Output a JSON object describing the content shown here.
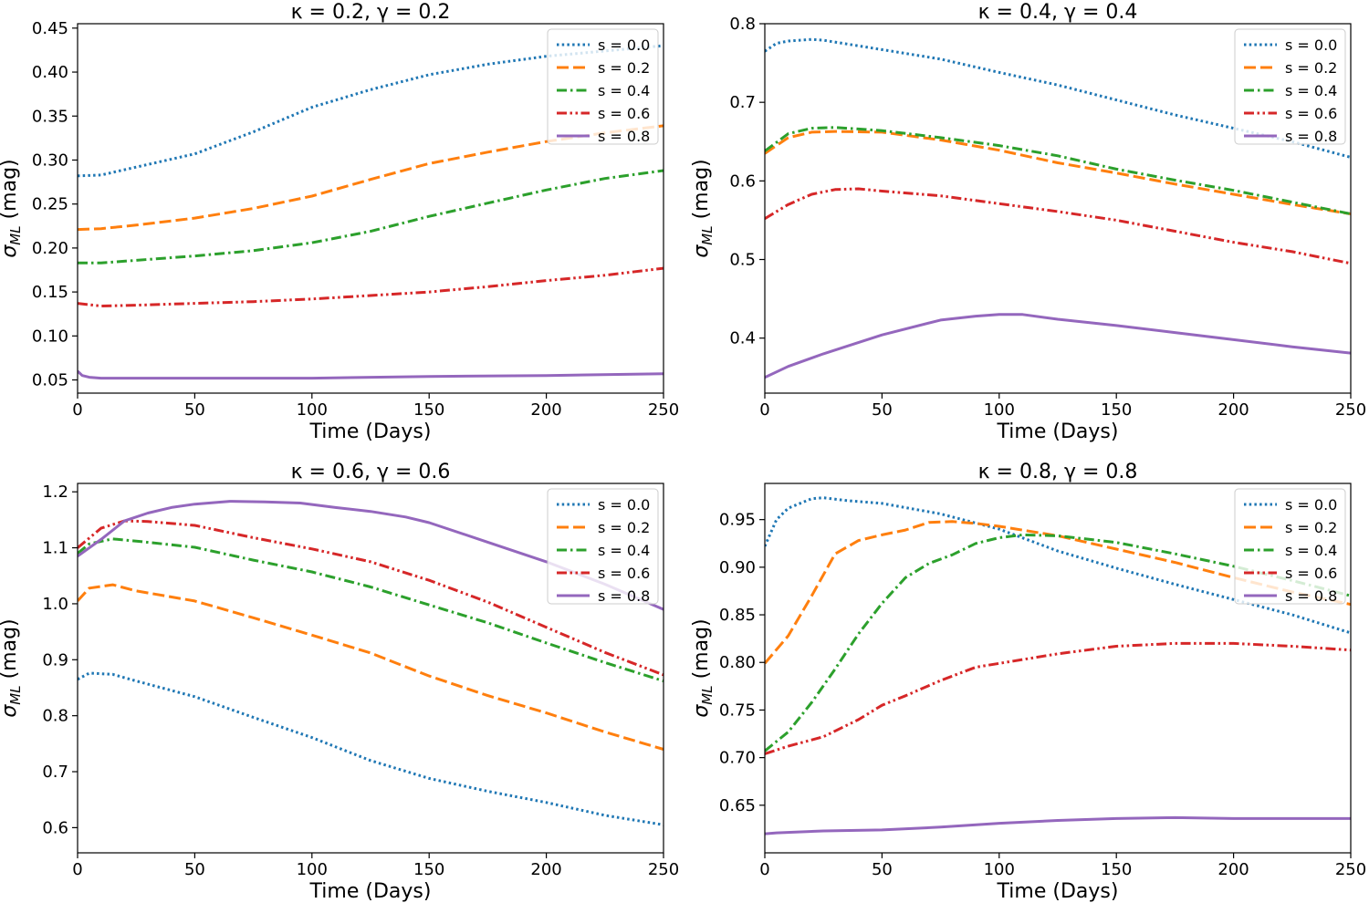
{
  "chart_data": [
    {
      "type": "line",
      "title": "κ = 0.2, γ = 0.2",
      "xlabel": "Time (Days)",
      "ylabel": "σML (mag)",
      "xlim": [
        0,
        250
      ],
      "ylim": [
        0.035,
        0.455
      ],
      "xticks": [
        0,
        50,
        100,
        150,
        200,
        250
      ],
      "xtick_labels": [
        "0",
        "50",
        "100",
        "150",
        "200",
        "250"
      ],
      "yticks": [
        0.05,
        0.1,
        0.15,
        0.2,
        0.25,
        0.3,
        0.35,
        0.4,
        0.45
      ],
      "ytick_labels": [
        "0.05",
        "0.10",
        "0.15",
        "0.20",
        "0.25",
        "0.30",
        "0.35",
        "0.40",
        "0.45"
      ],
      "legend_position": "top-right",
      "series": [
        {
          "name": "s = 0.0",
          "color": "#1f77b4",
          "style": "dotted",
          "x": [
            0,
            10,
            25,
            50,
            75,
            100,
            125,
            150,
            175,
            200,
            225,
            250
          ],
          "values": [
            0.282,
            0.283,
            0.292,
            0.307,
            0.332,
            0.36,
            0.38,
            0.397,
            0.409,
            0.418,
            0.424,
            0.43
          ]
        },
        {
          "name": "s = 0.2",
          "color": "#ff7f0e",
          "style": "dashed",
          "x": [
            0,
            10,
            25,
            50,
            75,
            100,
            125,
            150,
            175,
            200,
            225,
            250
          ],
          "values": [
            0.221,
            0.222,
            0.226,
            0.234,
            0.245,
            0.259,
            0.278,
            0.296,
            0.309,
            0.321,
            0.331,
            0.339
          ]
        },
        {
          "name": "s = 0.4",
          "color": "#2ca02c",
          "style": "dashdot",
          "x": [
            0,
            10,
            25,
            50,
            75,
            100,
            125,
            150,
            175,
            200,
            225,
            250
          ],
          "values": [
            0.183,
            0.183,
            0.186,
            0.191,
            0.197,
            0.206,
            0.219,
            0.236,
            0.251,
            0.266,
            0.279,
            0.288
          ]
        },
        {
          "name": "s = 0.6",
          "color": "#d62728",
          "style": "dashdotdot",
          "x": [
            0,
            10,
            25,
            50,
            75,
            100,
            125,
            150,
            175,
            200,
            225,
            250
          ],
          "values": [
            0.137,
            0.134,
            0.135,
            0.137,
            0.139,
            0.142,
            0.146,
            0.15,
            0.156,
            0.163,
            0.169,
            0.177
          ]
        },
        {
          "name": "s = 0.8",
          "color": "#9467bd",
          "style": "solid",
          "x": [
            0,
            2,
            5,
            10,
            50,
            100,
            150,
            200,
            250
          ],
          "values": [
            0.06,
            0.055,
            0.053,
            0.052,
            0.052,
            0.052,
            0.054,
            0.055,
            0.057
          ]
        }
      ]
    },
    {
      "type": "line",
      "title": "κ = 0.4, γ = 0.4",
      "xlabel": "Time (Days)",
      "ylabel": "σML (mag)",
      "xlim": [
        0,
        250
      ],
      "ylim": [
        0.33,
        0.8
      ],
      "xticks": [
        0,
        50,
        100,
        150,
        200,
        250
      ],
      "xtick_labels": [
        "0",
        "50",
        "100",
        "150",
        "200",
        "250"
      ],
      "yticks": [
        0.4,
        0.5,
        0.6,
        0.7,
        0.8
      ],
      "ytick_labels": [
        "0.4",
        "0.5",
        "0.6",
        "0.7",
        "0.8"
      ],
      "legend_position": "top-right",
      "series": [
        {
          "name": "s = 0.0",
          "color": "#1f77b4",
          "style": "dotted",
          "x": [
            0,
            5,
            10,
            20,
            25,
            50,
            75,
            100,
            125,
            150,
            175,
            200,
            225,
            250
          ],
          "values": [
            0.765,
            0.775,
            0.778,
            0.78,
            0.779,
            0.767,
            0.755,
            0.738,
            0.722,
            0.703,
            0.684,
            0.667,
            0.65,
            0.63
          ]
        },
        {
          "name": "s = 0.2",
          "color": "#ff7f0e",
          "style": "dashed",
          "x": [
            0,
            10,
            20,
            30,
            50,
            75,
            100,
            125,
            150,
            175,
            200,
            225,
            250
          ],
          "values": [
            0.635,
            0.655,
            0.662,
            0.663,
            0.662,
            0.652,
            0.639,
            0.623,
            0.61,
            0.596,
            0.583,
            0.57,
            0.558
          ]
        },
        {
          "name": "s = 0.4",
          "color": "#2ca02c",
          "style": "dashdot",
          "x": [
            0,
            10,
            20,
            30,
            50,
            75,
            100,
            125,
            150,
            175,
            200,
            225,
            250
          ],
          "values": [
            0.638,
            0.66,
            0.667,
            0.668,
            0.664,
            0.655,
            0.645,
            0.632,
            0.615,
            0.601,
            0.588,
            0.573,
            0.558
          ]
        },
        {
          "name": "s = 0.6",
          "color": "#d62728",
          "style": "dashdotdot",
          "x": [
            0,
            10,
            20,
            30,
            40,
            50,
            75,
            100,
            125,
            150,
            175,
            200,
            225,
            250
          ],
          "values": [
            0.552,
            0.57,
            0.583,
            0.589,
            0.59,
            0.587,
            0.581,
            0.571,
            0.561,
            0.55,
            0.536,
            0.522,
            0.51,
            0.495
          ]
        },
        {
          "name": "s = 0.8",
          "color": "#9467bd",
          "style": "solid",
          "x": [
            0,
            10,
            25,
            50,
            75,
            90,
            100,
            110,
            125,
            150,
            175,
            200,
            225,
            250
          ],
          "values": [
            0.35,
            0.364,
            0.38,
            0.404,
            0.423,
            0.428,
            0.43,
            0.43,
            0.424,
            0.416,
            0.407,
            0.398,
            0.389,
            0.381
          ]
        }
      ]
    },
    {
      "type": "line",
      "title": "κ = 0.6, γ = 0.6",
      "xlabel": "Time (Days)",
      "ylabel": "σML (mag)",
      "xlim": [
        0,
        250
      ],
      "ylim": [
        0.555,
        1.215
      ],
      "xticks": [
        0,
        50,
        100,
        150,
        200,
        250
      ],
      "xtick_labels": [
        "0",
        "50",
        "100",
        "150",
        "200",
        "250"
      ],
      "yticks": [
        0.6,
        0.7,
        0.8,
        0.9,
        1.0,
        1.1,
        1.2
      ],
      "ytick_labels": [
        "0.6",
        "0.7",
        "0.8",
        "0.9",
        "1.0",
        "1.1",
        "1.2"
      ],
      "legend_position": "top-right",
      "series": [
        {
          "name": "s = 0.0",
          "color": "#1f77b4",
          "style": "dotted",
          "x": [
            0,
            5,
            15,
            25,
            50,
            75,
            100,
            125,
            150,
            175,
            200,
            225,
            250
          ],
          "values": [
            0.865,
            0.876,
            0.874,
            0.862,
            0.834,
            0.797,
            0.761,
            0.72,
            0.688,
            0.665,
            0.645,
            0.622,
            0.605
          ]
        },
        {
          "name": "s = 0.2",
          "color": "#ff7f0e",
          "style": "dashed",
          "x": [
            0,
            5,
            15,
            25,
            50,
            75,
            100,
            125,
            150,
            175,
            200,
            225,
            250
          ],
          "values": [
            1.005,
            1.028,
            1.034,
            1.023,
            1.005,
            0.975,
            0.944,
            0.912,
            0.871,
            0.836,
            0.805,
            0.771,
            0.74
          ]
        },
        {
          "name": "s = 0.4",
          "color": "#2ca02c",
          "style": "dashdot",
          "x": [
            0,
            5,
            15,
            25,
            50,
            75,
            100,
            125,
            150,
            175,
            200,
            225,
            250
          ],
          "values": [
            1.09,
            1.107,
            1.116,
            1.112,
            1.101,
            1.078,
            1.057,
            1.03,
            0.998,
            0.966,
            0.93,
            0.895,
            0.862
          ]
        },
        {
          "name": "s = 0.6",
          "color": "#d62728",
          "style": "dashdotdot",
          "x": [
            0,
            10,
            20,
            30,
            50,
            75,
            100,
            125,
            150,
            175,
            200,
            225,
            250
          ],
          "values": [
            1.1,
            1.135,
            1.148,
            1.147,
            1.14,
            1.118,
            1.098,
            1.075,
            1.042,
            1.003,
            0.958,
            0.913,
            0.873
          ]
        },
        {
          "name": "s = 0.8",
          "color": "#9467bd",
          "style": "solid",
          "x": [
            0,
            10,
            20,
            30,
            40,
            50,
            65,
            80,
            95,
            110,
            125,
            140,
            150,
            175,
            200,
            225,
            250
          ],
          "values": [
            1.085,
            1.115,
            1.148,
            1.162,
            1.172,
            1.178,
            1.183,
            1.182,
            1.18,
            1.172,
            1.165,
            1.155,
            1.145,
            1.11,
            1.075,
            1.035,
            0.99
          ]
        }
      ]
    },
    {
      "type": "line",
      "title": "κ = 0.8, γ = 0.8",
      "xlabel": "Time (Days)",
      "ylabel": "σML (mag)",
      "xlim": [
        0,
        250
      ],
      "ylim": [
        0.6,
        0.988
      ],
      "xticks": [
        0,
        50,
        100,
        150,
        200,
        250
      ],
      "xtick_labels": [
        "0",
        "50",
        "100",
        "150",
        "200",
        "250"
      ],
      "yticks": [
        0.65,
        0.7,
        0.75,
        0.8,
        0.85,
        0.9,
        0.95
      ],
      "ytick_labels": [
        "0.65",
        "0.70",
        "0.75",
        "0.80",
        "0.85",
        "0.90",
        "0.95"
      ],
      "legend_position": "top-right",
      "series": [
        {
          "name": "s = 0.0",
          "color": "#1f77b4",
          "style": "dotted",
          "x": [
            0,
            5,
            10,
            20,
            25,
            35,
            50,
            75,
            100,
            125,
            150,
            175,
            200,
            225,
            250
          ],
          "values": [
            0.922,
            0.95,
            0.962,
            0.972,
            0.973,
            0.97,
            0.967,
            0.956,
            0.94,
            0.917,
            0.899,
            0.882,
            0.866,
            0.85,
            0.831
          ]
        },
        {
          "name": "s = 0.2",
          "color": "#ff7f0e",
          "style": "dashed",
          "x": [
            0,
            10,
            20,
            30,
            40,
            50,
            60,
            70,
            80,
            90,
            100,
            125,
            150,
            175,
            200,
            225,
            250
          ],
          "values": [
            0.799,
            0.828,
            0.87,
            0.914,
            0.928,
            0.934,
            0.939,
            0.947,
            0.948,
            0.946,
            0.943,
            0.933,
            0.919,
            0.905,
            0.889,
            0.874,
            0.861
          ]
        },
        {
          "name": "s = 0.4",
          "color": "#2ca02c",
          "style": "dashdot",
          "x": [
            0,
            10,
            20,
            30,
            40,
            50,
            60,
            70,
            80,
            90,
            100,
            110,
            125,
            150,
            175,
            200,
            225,
            250
          ],
          "values": [
            0.707,
            0.727,
            0.758,
            0.793,
            0.83,
            0.862,
            0.889,
            0.904,
            0.913,
            0.925,
            0.931,
            0.934,
            0.933,
            0.926,
            0.914,
            0.901,
            0.886,
            0.87
          ]
        },
        {
          "name": "s = 0.6",
          "color": "#d62728",
          "style": "dashdotdot",
          "x": [
            0,
            10,
            25,
            40,
            50,
            60,
            75,
            90,
            100,
            125,
            150,
            175,
            200,
            225,
            250
          ],
          "values": [
            0.704,
            0.712,
            0.722,
            0.74,
            0.755,
            0.765,
            0.781,
            0.795,
            0.799,
            0.809,
            0.817,
            0.82,
            0.82,
            0.817,
            0.813
          ]
        },
        {
          "name": "s = 0.8",
          "color": "#9467bd",
          "style": "solid",
          "x": [
            0,
            5,
            25,
            50,
            75,
            100,
            125,
            150,
            175,
            200,
            225,
            250
          ],
          "values": [
            0.62,
            0.621,
            0.623,
            0.624,
            0.627,
            0.631,
            0.634,
            0.636,
            0.637,
            0.636,
            0.636,
            0.636
          ]
        }
      ]
    }
  ]
}
